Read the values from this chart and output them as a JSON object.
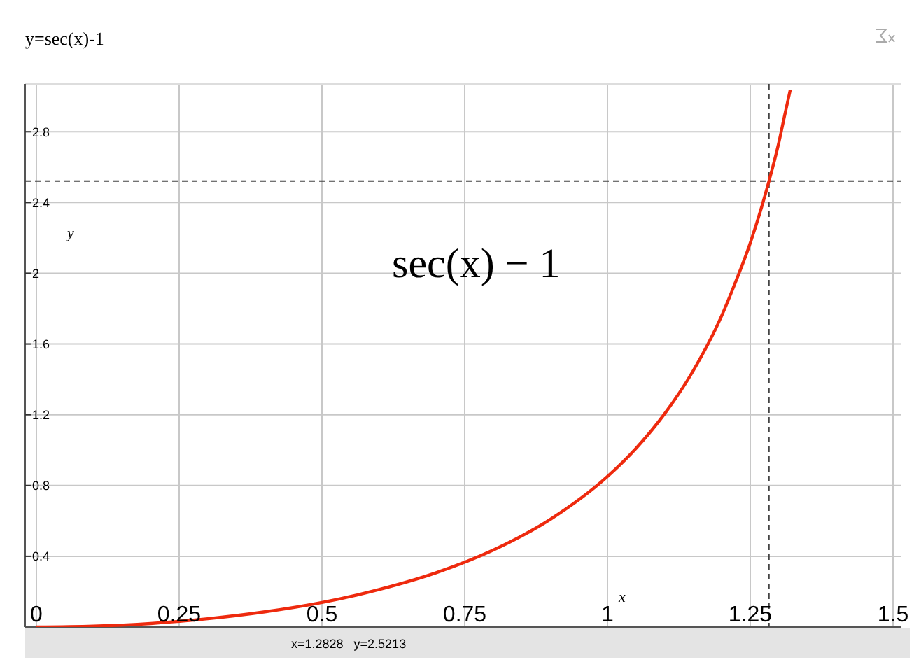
{
  "chart_data": {
    "type": "line",
    "title": "y=sec(x)-1",
    "xlabel": "x",
    "ylabel": "y",
    "x": [
      0,
      0.1,
      0.2,
      0.3,
      0.4,
      0.5,
      0.6,
      0.7,
      0.8,
      0.9,
      1.0,
      1.05,
      1.1,
      1.15,
      1.2,
      1.22,
      1.25,
      1.27,
      1.2828,
      1.3,
      1.31,
      1.32
    ],
    "series": [
      {
        "color": "#ee2a0e",
        "values": [
          0,
          0.005,
          0.02,
          0.047,
          0.086,
          0.139,
          0.212,
          0.307,
          0.435,
          0.609,
          0.851,
          1.01,
          1.205,
          1.448,
          1.76,
          1.916,
          2.171,
          2.375,
          2.521,
          2.738,
          2.889,
          3.036
        ]
      }
    ],
    "xlim": [
      0,
      1.5
    ],
    "ylim": [
      0,
      3.07
    ],
    "xticks": [
      0,
      0.25,
      0.5,
      0.75,
      1,
      1.25,
      1.5
    ],
    "yticks": [
      0.4,
      0.8,
      1.2,
      1.6,
      2,
      2.4,
      2.8
    ],
    "ref_lines": [
      {
        "axis": "x",
        "value": 1.2828,
        "line_style": "dashed",
        "color": "#444444"
      },
      {
        "axis": "y",
        "value": 2.5213,
        "line_style": "dashed",
        "color": "#444444"
      }
    ],
    "annotations": [
      "sec(x) − 1",
      "x=1.2828   y=2.5213"
    ],
    "grid": true,
    "line_style": "solid"
  }
}
